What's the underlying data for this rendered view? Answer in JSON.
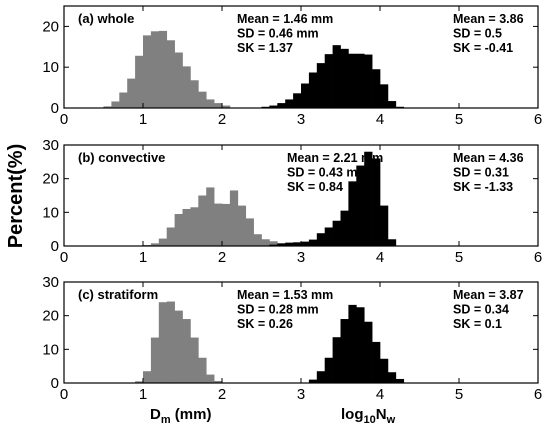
{
  "ylabel": "Percent(%)",
  "xlabel_left": {
    "main": "D",
    "sub": "m",
    "rest": " (mm)"
  },
  "xlabel_right": {
    "main": "log",
    "sub": "10",
    "rest": "N",
    "sub2": "w"
  },
  "colors": {
    "dm": "#808080",
    "nw": "#000000"
  },
  "chart_data": [
    {
      "type": "bar",
      "label": "(a) whole",
      "xlim": [
        0,
        6
      ],
      "ylim": [
        0,
        25
      ],
      "xticks": [
        0,
        1,
        2,
        3,
        4,
        5,
        6
      ],
      "yticks": [
        0,
        10,
        20
      ],
      "bin_width": 0.1,
      "series": [
        {
          "name": "Dm (mm)",
          "color": "#808080",
          "start": 0.5,
          "values": [
            0.4,
            1.6,
            3.8,
            7.2,
            12.8,
            17.8,
            18.8,
            18.9,
            16.6,
            13.6,
            10.2,
            6.8,
            4.0,
            2.1,
            1.2,
            0.6
          ]
        },
        {
          "name": "log10Nw",
          "color": "#000000",
          "start": 2.5,
          "values": [
            0.3,
            0.6,
            1.2,
            2.1,
            3.6,
            6.0,
            8.7,
            11.0,
            13.2,
            15.4,
            14.5,
            13.3,
            13.3,
            13.1,
            9.5,
            5.8,
            1.7,
            0.3
          ]
        }
      ],
      "stats_left": [
        "Mean = 1.46 mm",
        "SD = 0.46 mm",
        "SK = 1.37"
      ],
      "stats_right": [
        "Mean = 3.86",
        "SD = 0.5",
        "SK = -0.41"
      ]
    },
    {
      "type": "bar",
      "label": "(b) convective",
      "xlim": [
        0,
        6
      ],
      "ylim": [
        0,
        30
      ],
      "xticks": [
        0,
        1,
        2,
        3,
        4,
        5,
        6
      ],
      "yticks": [
        0,
        10,
        20,
        30
      ],
      "bin_width": 0.1,
      "series": [
        {
          "name": "Dm (mm)",
          "color": "#808080",
          "start": 1.0,
          "values": [
            0.3,
            0.8,
            2.2,
            5.5,
            9.5,
            11.0,
            11.5,
            15.0,
            17.4,
            12.6,
            12.5,
            16.5,
            12.0,
            8.2,
            3.5,
            2.0,
            1.4,
            0.6
          ]
        },
        {
          "name": "log10Nw",
          "color": "#000000",
          "start": 2.6,
          "values": [
            0.4,
            0.8,
            1.0,
            1.1,
            1.3,
            1.9,
            3.8,
            5.5,
            7.5,
            10.5,
            19.2,
            23.9,
            28.0,
            26.0,
            12.0,
            2.0
          ]
        }
      ],
      "stats_left": [
        "Mean = 2.21 mm",
        "SD = 0.43 mm",
        "SK = 0.84"
      ],
      "stats_right": [
        "Mean = 4.36",
        "SD = 0.31",
        "SK = -1.33"
      ]
    },
    {
      "type": "bar",
      "label": "(c) stratiform",
      "xlim": [
        0,
        6
      ],
      "ylim": [
        0,
        30
      ],
      "xticks": [
        0,
        1,
        2,
        3,
        4,
        5,
        6
      ],
      "yticks": [
        0,
        10,
        20,
        30
      ],
      "bin_width": 0.1,
      "series": [
        {
          "name": "Dm (mm)",
          "color": "#808080",
          "start": 0.9,
          "values": [
            0.5,
            3.5,
            13.5,
            24.0,
            24.2,
            21.5,
            19.0,
            13.5,
            7.5,
            2.5,
            0.6
          ]
        },
        {
          "name": "log10Nw",
          "color": "#000000",
          "start": 3.1,
          "values": [
            1.0,
            3.5,
            7.5,
            13.6,
            19.0,
            23.2,
            22.5,
            18.2,
            12.2,
            7.2,
            3.2,
            1.2
          ]
        }
      ],
      "stats_left": [
        "Mean = 1.53 mm",
        "SD = 0.28 mm",
        "SK = 0.26"
      ],
      "stats_right": [
        "Mean = 3.87",
        "SD = 0.34",
        "SK = 0.1"
      ]
    }
  ]
}
